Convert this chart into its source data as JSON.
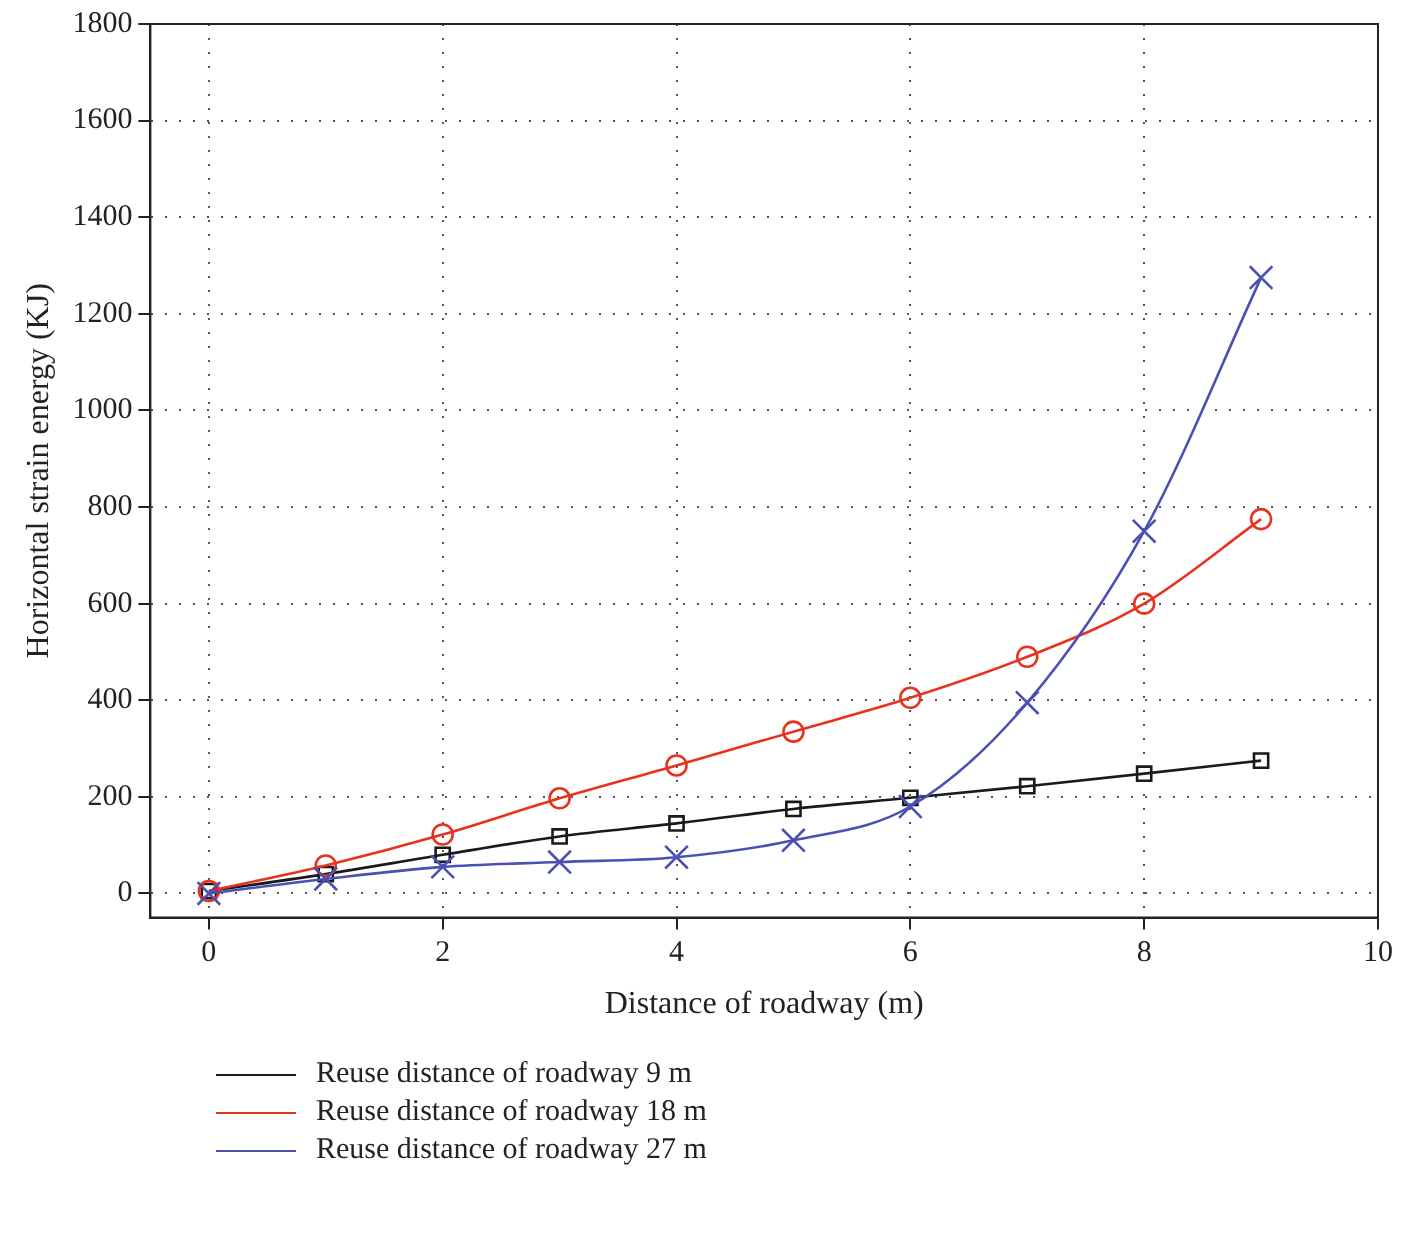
{
  "chart_data": {
    "type": "line",
    "xlabel": "Distance of roadway (m)",
    "ylabel": "Horizontal strain energy (KJ)",
    "x": [
      0,
      1,
      2,
      3,
      4,
      5,
      6,
      7,
      8,
      9
    ],
    "series": [
      {
        "name": "Reuse distance of roadway 9 m",
        "color": "#1a1a1a",
        "marker": "square",
        "values": [
          5,
          40,
          80,
          118,
          145,
          175,
          198,
          222,
          248,
          275
        ]
      },
      {
        "name": "Reuse distance of roadway 18 m",
        "color": "#e8321e",
        "marker": "circle",
        "values": [
          5,
          58,
          122,
          197,
          265,
          335,
          405,
          490,
          600,
          775
        ]
      },
      {
        "name": "Reuse distance of roadway 27 m",
        "color": "#4a50b4",
        "marker": "cross",
        "values": [
          0,
          30,
          55,
          65,
          75,
          110,
          180,
          395,
          750,
          1275
        ]
      }
    ],
    "xlim": [
      -0.5,
      10
    ],
    "xticks": [
      0,
      2,
      4,
      6,
      8,
      10
    ],
    "ylim": [
      -50,
      1800
    ],
    "yticks": [
      0,
      200,
      400,
      600,
      800,
      1000,
      1200,
      1400,
      1600,
      1800
    ],
    "grid": true,
    "legend": "bottom left",
    "line_style": "solid"
  }
}
